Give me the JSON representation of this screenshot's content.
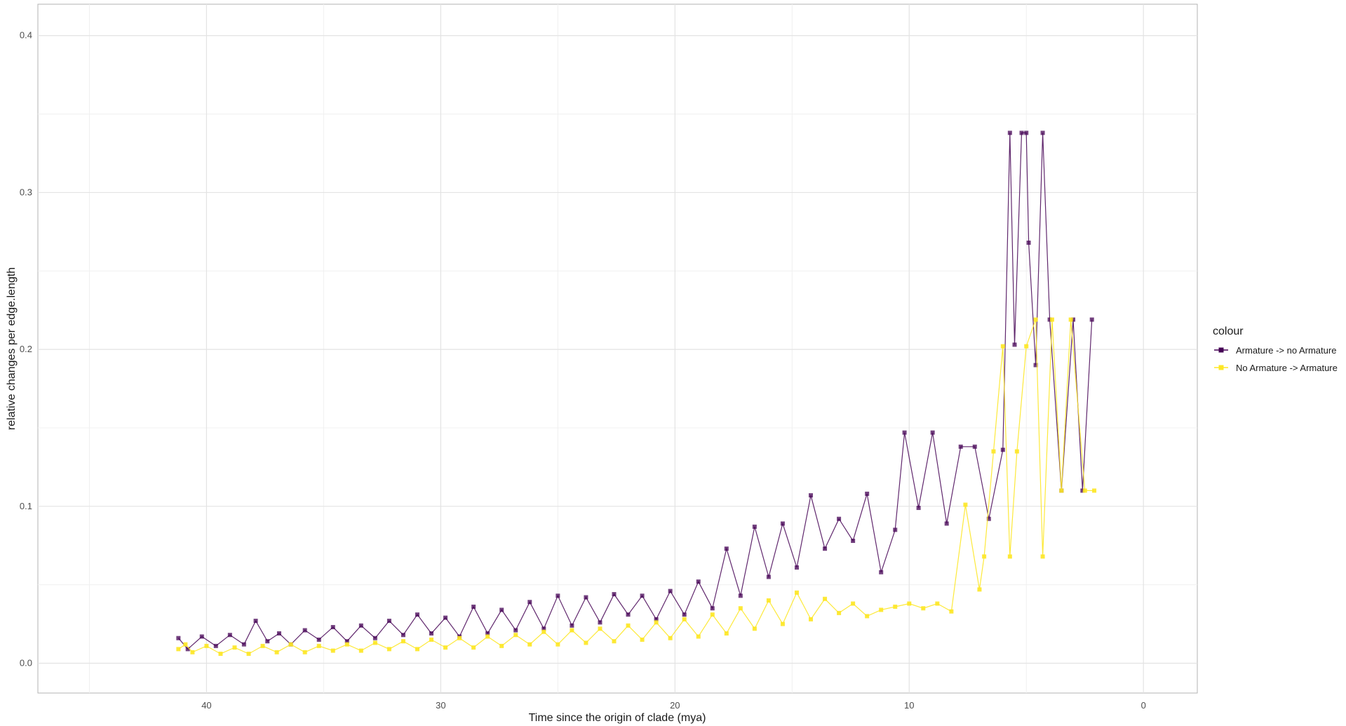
{
  "chart_data": {
    "type": "line",
    "title": "",
    "xlabel": "Time since the origin of clade (mya)",
    "ylabel": "relative changes per edge.length",
    "x_reversed": true,
    "xlim": [
      47.2,
      -2.3
    ],
    "ylim": [
      -0.019,
      0.42
    ],
    "xticks": [
      40,
      30,
      20,
      10,
      0
    ],
    "yticks": [
      0.0,
      0.1,
      0.2,
      0.3,
      0.4
    ],
    "grid": true,
    "legend": {
      "title": "colour",
      "placement": "right",
      "entries": [
        "Armature -> no Armature",
        "No Armature -> Armature"
      ]
    },
    "series": [
      {
        "name": "Armature -> no Armature",
        "color": "#440154",
        "x": [
          41.2,
          40.8,
          40.2,
          39.6,
          39.0,
          38.4,
          37.9,
          37.4,
          36.9,
          36.4,
          35.8,
          35.2,
          34.6,
          34.0,
          33.4,
          32.8,
          32.2,
          31.6,
          31.0,
          30.4,
          29.8,
          29.2,
          28.6,
          28.0,
          27.4,
          26.8,
          26.2,
          25.6,
          25.0,
          24.4,
          23.8,
          23.2,
          22.6,
          22.0,
          21.4,
          20.8,
          20.2,
          19.6,
          19.0,
          18.4,
          17.8,
          17.2,
          16.6,
          16.0,
          15.4,
          14.8,
          14.2,
          13.6,
          13.0,
          12.4,
          11.8,
          11.2,
          10.6,
          10.2,
          9.6,
          9.0,
          8.4,
          7.8,
          7.2,
          6.6,
          6.0,
          5.7,
          5.5,
          5.2,
          5.0,
          4.9,
          4.6,
          4.3,
          4.0,
          3.5,
          3.0,
          2.6,
          2.2
        ],
        "y": [
          0.016,
          0.009,
          0.017,
          0.011,
          0.018,
          0.012,
          0.027,
          0.014,
          0.019,
          0.012,
          0.021,
          0.015,
          0.023,
          0.014,
          0.024,
          0.016,
          0.027,
          0.018,
          0.031,
          0.019,
          0.029,
          0.017,
          0.036,
          0.019,
          0.034,
          0.021,
          0.039,
          0.022,
          0.043,
          0.024,
          0.042,
          0.026,
          0.044,
          0.031,
          0.043,
          0.028,
          0.046,
          0.031,
          0.052,
          0.035,
          0.073,
          0.043,
          0.087,
          0.055,
          0.089,
          0.061,
          0.107,
          0.073,
          0.092,
          0.078,
          0.108,
          0.058,
          0.085,
          0.147,
          0.099,
          0.147,
          0.089,
          0.138,
          0.138,
          0.092,
          0.136,
          0.338,
          0.203,
          0.338,
          0.338,
          0.268,
          0.19,
          0.338,
          0.219,
          0.11,
          0.219,
          0.11,
          0.219
        ]
      },
      {
        "name": "No Armature -> Armature",
        "color": "#fde725",
        "x": [
          41.2,
          40.9,
          40.6,
          40.0,
          39.4,
          38.8,
          38.2,
          37.6,
          37.0,
          36.4,
          35.8,
          35.2,
          34.6,
          34.0,
          33.4,
          32.8,
          32.2,
          31.6,
          31.0,
          30.4,
          29.8,
          29.2,
          28.6,
          28.0,
          27.4,
          26.8,
          26.2,
          25.6,
          25.0,
          24.4,
          23.8,
          23.2,
          22.6,
          22.0,
          21.4,
          20.8,
          20.2,
          19.6,
          19.0,
          18.4,
          17.8,
          17.2,
          16.6,
          16.0,
          15.4,
          14.8,
          14.2,
          13.6,
          13.0,
          12.4,
          11.8,
          11.2,
          10.6,
          10.0,
          9.4,
          8.8,
          8.2,
          7.6,
          7.0,
          6.8,
          6.4,
          6.0,
          5.7,
          5.4,
          5.0,
          4.6,
          4.3,
          3.9,
          3.5,
          3.1,
          2.5,
          2.1
        ],
        "y": [
          0.009,
          0.012,
          0.007,
          0.011,
          0.006,
          0.01,
          0.006,
          0.011,
          0.007,
          0.012,
          0.007,
          0.011,
          0.008,
          0.012,
          0.008,
          0.013,
          0.009,
          0.014,
          0.009,
          0.015,
          0.01,
          0.016,
          0.01,
          0.017,
          0.011,
          0.018,
          0.012,
          0.02,
          0.012,
          0.021,
          0.013,
          0.022,
          0.014,
          0.024,
          0.015,
          0.026,
          0.016,
          0.028,
          0.017,
          0.031,
          0.019,
          0.035,
          0.022,
          0.04,
          0.025,
          0.045,
          0.028,
          0.041,
          0.032,
          0.038,
          0.03,
          0.034,
          0.036,
          0.038,
          0.035,
          0.038,
          0.033,
          0.101,
          0.047,
          0.068,
          0.135,
          0.202,
          0.068,
          0.135,
          0.202,
          0.219,
          0.068,
          0.219,
          0.11,
          0.219,
          0.11,
          0.11
        ]
      }
    ]
  }
}
